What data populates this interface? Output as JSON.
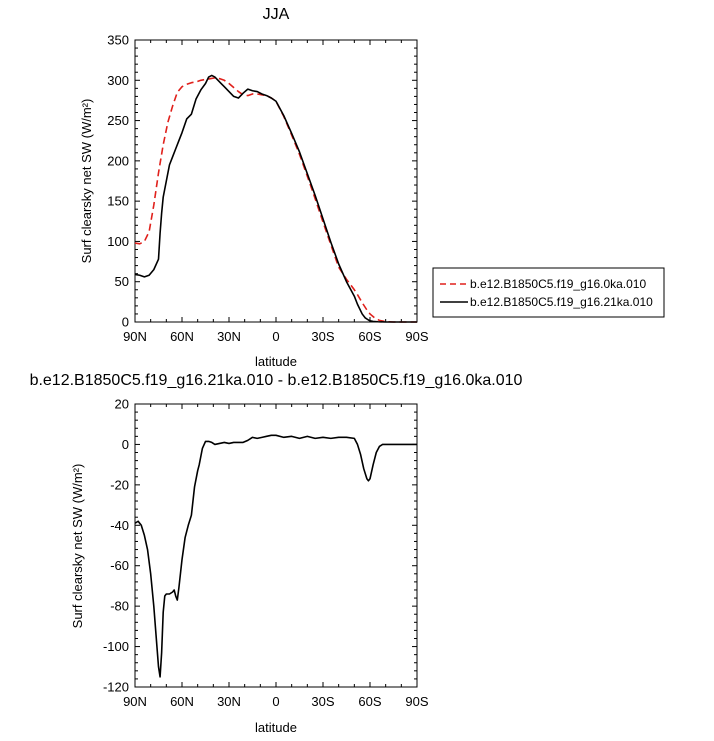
{
  "colors": {
    "control": "#e0201b",
    "experiment": "#000000"
  },
  "chart_data": [
    {
      "type": "line",
      "title": "JJA",
      "xlabel": "latitude",
      "ylabel": "Surf clearsky net SW (W/m²)",
      "xlim": [
        90,
        -90
      ],
      "ylim": [
        0,
        350
      ],
      "xticks": [
        90,
        60,
        30,
        0,
        -30,
        -60,
        -90
      ],
      "xtick_labels": [
        "90N",
        "60N",
        "30N",
        "0",
        "30S",
        "60S",
        "90S"
      ],
      "yticks": [
        0,
        50,
        100,
        150,
        200,
        250,
        300,
        350
      ],
      "ytick_labels": [
        "0",
        "50",
        "100",
        "150",
        "200",
        "250",
        "300",
        "350"
      ],
      "legend_position": "outside-right",
      "series": [
        {
          "name": "b.e12.B1850C5.f19_g16.0ka.010",
          "style": "dashed",
          "color": "#e0201b",
          "x": [
            90,
            87,
            84,
            81,
            78,
            75,
            72,
            69,
            66,
            63,
            60,
            57,
            54,
            51,
            48,
            45,
            42,
            39,
            36,
            33,
            30,
            27,
            24,
            21,
            18,
            15,
            12,
            9,
            6,
            3,
            0,
            -5,
            -10,
            -15,
            -20,
            -25,
            -30,
            -35,
            -40,
            -45,
            -50,
            -52,
            -55,
            -58,
            -60,
            -63,
            -66,
            -70,
            -75,
            -80,
            -85,
            -90
          ],
          "y": [
            98,
            97,
            100,
            112,
            145,
            185,
            220,
            248,
            268,
            285,
            292,
            295,
            297,
            298,
            300,
            301,
            302,
            303,
            302,
            300,
            296,
            291,
            286,
            282,
            281,
            283,
            283,
            282,
            281,
            278,
            274,
            255,
            232,
            208,
            181,
            153,
            124,
            96,
            68,
            53,
            40,
            34,
            24,
            15,
            10,
            5,
            2,
            0.5,
            0,
            0,
            0,
            0
          ]
        },
        {
          "name": "b.e12.B1850C5.f19_g16.21ka.010",
          "style": "solid",
          "color": "#000000",
          "x": [
            90,
            87,
            84,
            81,
            78,
            75,
            74,
            73,
            72,
            70,
            68,
            66,
            64,
            62,
            60,
            57,
            54,
            51,
            48,
            45,
            43,
            41,
            39,
            37,
            35,
            33,
            30,
            27,
            24,
            21,
            18,
            15,
            12,
            9,
            6,
            3,
            0,
            -5,
            -10,
            -15,
            -20,
            -25,
            -30,
            -35,
            -40,
            -45,
            -50,
            -52,
            -55,
            -57,
            -59,
            -60,
            -62,
            -65,
            -70,
            -75,
            -80,
            -85,
            -90
          ],
          "y": [
            59,
            58,
            56,
            58,
            65,
            78,
            110,
            135,
            155,
            175,
            195,
            205,
            215,
            225,
            235,
            252,
            258,
            277,
            288,
            296,
            304,
            306,
            304,
            300,
            296,
            292,
            286,
            280,
            278,
            284,
            289,
            287,
            286,
            283,
            281,
            278,
            274,
            256,
            234,
            211,
            184,
            157,
            128,
            99,
            72,
            50,
            32,
            22,
            10,
            5,
            2.5,
            1.5,
            0.8,
            0.3,
            0,
            0,
            0,
            0,
            0
          ]
        }
      ]
    },
    {
      "type": "line",
      "title": "b.e12.B1850C5.f19_g16.21ka.010 - b.e12.B1850C5.f19_g16.0ka.010",
      "xlabel": "latitude",
      "ylabel": "Surf clearsky net SW (W/m²)",
      "xlim": [
        90,
        -90
      ],
      "ylim": [
        -120,
        20
      ],
      "xticks": [
        90,
        60,
        30,
        0,
        -30,
        -60,
        -90
      ],
      "xtick_labels": [
        "90N",
        "60N",
        "30N",
        "0",
        "30S",
        "60S",
        "90S"
      ],
      "yticks": [
        -120,
        -100,
        -80,
        -60,
        -40,
        -20,
        0,
        20
      ],
      "ytick_labels": [
        "-120",
        "-100",
        "-80",
        "-60",
        "-40",
        "-20",
        "0",
        "20"
      ],
      "series": [
        {
          "name": "",
          "style": "solid",
          "color": "#000000",
          "x": [
            90,
            88,
            86,
            84,
            82,
            80,
            78,
            76,
            75,
            74,
            73,
            72,
            71,
            70,
            68,
            66,
            65,
            64,
            63,
            62,
            61,
            60,
            58,
            56,
            54,
            52,
            50,
            49,
            47,
            45,
            43,
            41,
            39,
            36,
            33,
            30,
            27,
            24,
            21,
            18,
            15,
            12,
            9,
            6,
            3,
            0,
            -5,
            -10,
            -15,
            -20,
            -25,
            -30,
            -35,
            -40,
            -45,
            -50,
            -52,
            -54,
            -56,
            -58,
            -59,
            -60,
            -62,
            -64,
            -66,
            -68,
            -70,
            -75,
            -80,
            -85,
            -90
          ],
          "y": [
            -39,
            -38,
            -40,
            -45,
            -52,
            -64,
            -80,
            -100,
            -110,
            -115,
            -103,
            -83,
            -75,
            -74,
            -74,
            -73,
            -72,
            -75,
            -77,
            -71,
            -64,
            -57,
            -46,
            -40,
            -35,
            -21,
            -13,
            -10,
            -2,
            1.5,
            1.5,
            1,
            0,
            0.5,
            1,
            0.5,
            1,
            1,
            1,
            2,
            3.5,
            3,
            3.5,
            4,
            4.5,
            4.5,
            3.5,
            4,
            3,
            4,
            3,
            3.5,
            3,
            3.5,
            3.5,
            3,
            0,
            -5,
            -12,
            -17,
            -18,
            -17,
            -10,
            -4,
            -1,
            0,
            0,
            0,
            0,
            0,
            0
          ]
        }
      ]
    }
  ]
}
